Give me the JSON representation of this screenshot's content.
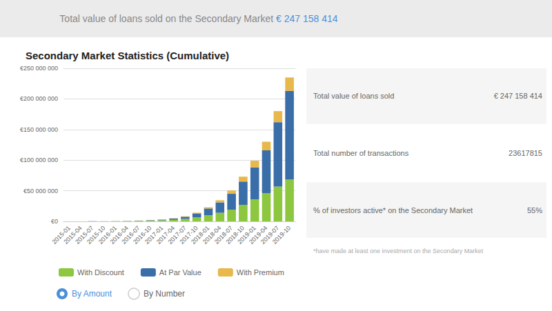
{
  "chart_data": {
    "type": "bar",
    "title": "Secondary Market Statistics (Cumulative)",
    "banner": [
      "Total value of loans sold on the Secondary Market ",
      "€ 247 158 414"
    ],
    "categories": [
      "2015-01",
      "2015-04",
      "2015-07",
      "2015-10",
      "2016-01",
      "2016-04",
      "2016-07",
      "2016-10",
      "2017-01",
      "2017-04",
      "2017-07",
      "2017-10",
      "2018-01",
      "2018-04",
      "2018-07",
      "2018-10",
      "2019-01",
      "2019-04",
      "2019-07",
      "2019-10"
    ],
    "series": [
      {
        "name": "With Discount",
        "color": "#8dc63f",
        "values": [
          50000,
          80000,
          100000,
          150000,
          300000,
          500000,
          800000,
          1200000,
          1800000,
          2500000,
          4000000,
          6500000,
          10000000,
          14000000,
          19000000,
          27000000,
          36000000,
          46000000,
          57000000,
          68000000
        ]
      },
      {
        "name": "At Par Value",
        "color": "#3a6ea8",
        "values": [
          20000,
          30000,
          50000,
          80000,
          150000,
          250000,
          400000,
          700000,
          1000000,
          2000000,
          3500000,
          6500000,
          11000000,
          17000000,
          26000000,
          38000000,
          52000000,
          70000000,
          105000000,
          145000000
        ]
      },
      {
        "name": "With Premium",
        "color": "#e8b84b",
        "values": [
          10000,
          10000,
          20000,
          30000,
          50000,
          80000,
          120000,
          200000,
          300000,
          500000,
          800000,
          1200000,
          2000000,
          3500000,
          5500000,
          8000000,
          11000000,
          14000000,
          18000000,
          22000000
        ]
      }
    ],
    "stacked": true,
    "ylim": [
      0,
      250000000
    ],
    "yticks": [
      {
        "value": 0,
        "label": "€0"
      },
      {
        "value": 50000000,
        "label": "€50 000 000"
      },
      {
        "value": 100000000,
        "label": "€100 000 000"
      },
      {
        "value": 150000000,
        "label": "€150 000 000"
      },
      {
        "value": 200000000,
        "label": "€200 000 000"
      },
      {
        "value": 250000000,
        "label": "€250 000 000"
      }
    ],
    "grid": true,
    "legend": "lower left",
    "radio_labels": [
      "By Amount",
      "By Number"
    ],
    "stats": [
      {
        "label": "Total value of loans sold",
        "value": "€ 247 158 414"
      },
      {
        "label": "Total number of transactions",
        "value": "23617815"
      },
      {
        "label": "% of investors active* on the Secondary Market",
        "value": "55%"
      }
    ],
    "footnote": "*have made at least one investment on the Secondary Market"
  }
}
